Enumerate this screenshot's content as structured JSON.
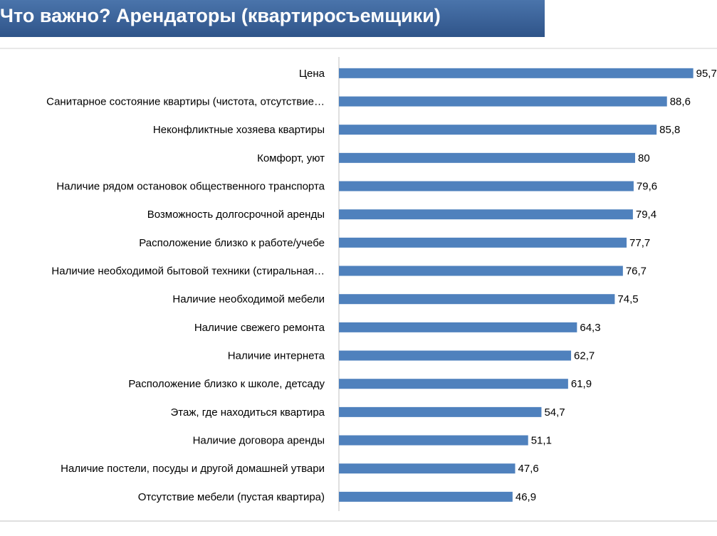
{
  "chart_data": {
    "type": "barh",
    "title": "Что важно? Арендаторы (квартиросъемщики)",
    "categories": [
      "Цена",
      "Санитарное состояние квартиры (чистота, отсутствие…",
      "Неконфликтные хозяева квартиры",
      "Комфорт, уют",
      "Наличие рядом остановок общественного транспорта",
      "Возможность долгосрочной аренды",
      "Расположение близко к работе/учебе",
      "Наличие необходимой бытовой техники (стиральная…",
      "Наличие необходимой мебели",
      "Наличие свежего ремонта",
      "Наличие интернета",
      "Расположение близко к школе, детсаду",
      "Этаж, где находиться квартира",
      "Наличие договора аренды",
      "Наличие постели, посуды и другой домашней утвари",
      "Отсутствие мебели (пустая квартира)"
    ],
    "values": [
      95.7,
      88.6,
      85.8,
      80,
      79.6,
      79.4,
      77.7,
      76.7,
      74.5,
      64.3,
      62.7,
      61.9,
      54.7,
      51.1,
      47.6,
      46.9
    ],
    "value_labels": [
      "95,7",
      "88,6",
      "85,8",
      "80",
      "79,6",
      "79,4",
      "77,7",
      "76,7",
      "74,5",
      "64,3",
      "62,7",
      "61,9",
      "54,7",
      "51,1",
      "47,6",
      "46,9"
    ],
    "color": "#4f81bd",
    "xlim": [
      0,
      100
    ]
  }
}
